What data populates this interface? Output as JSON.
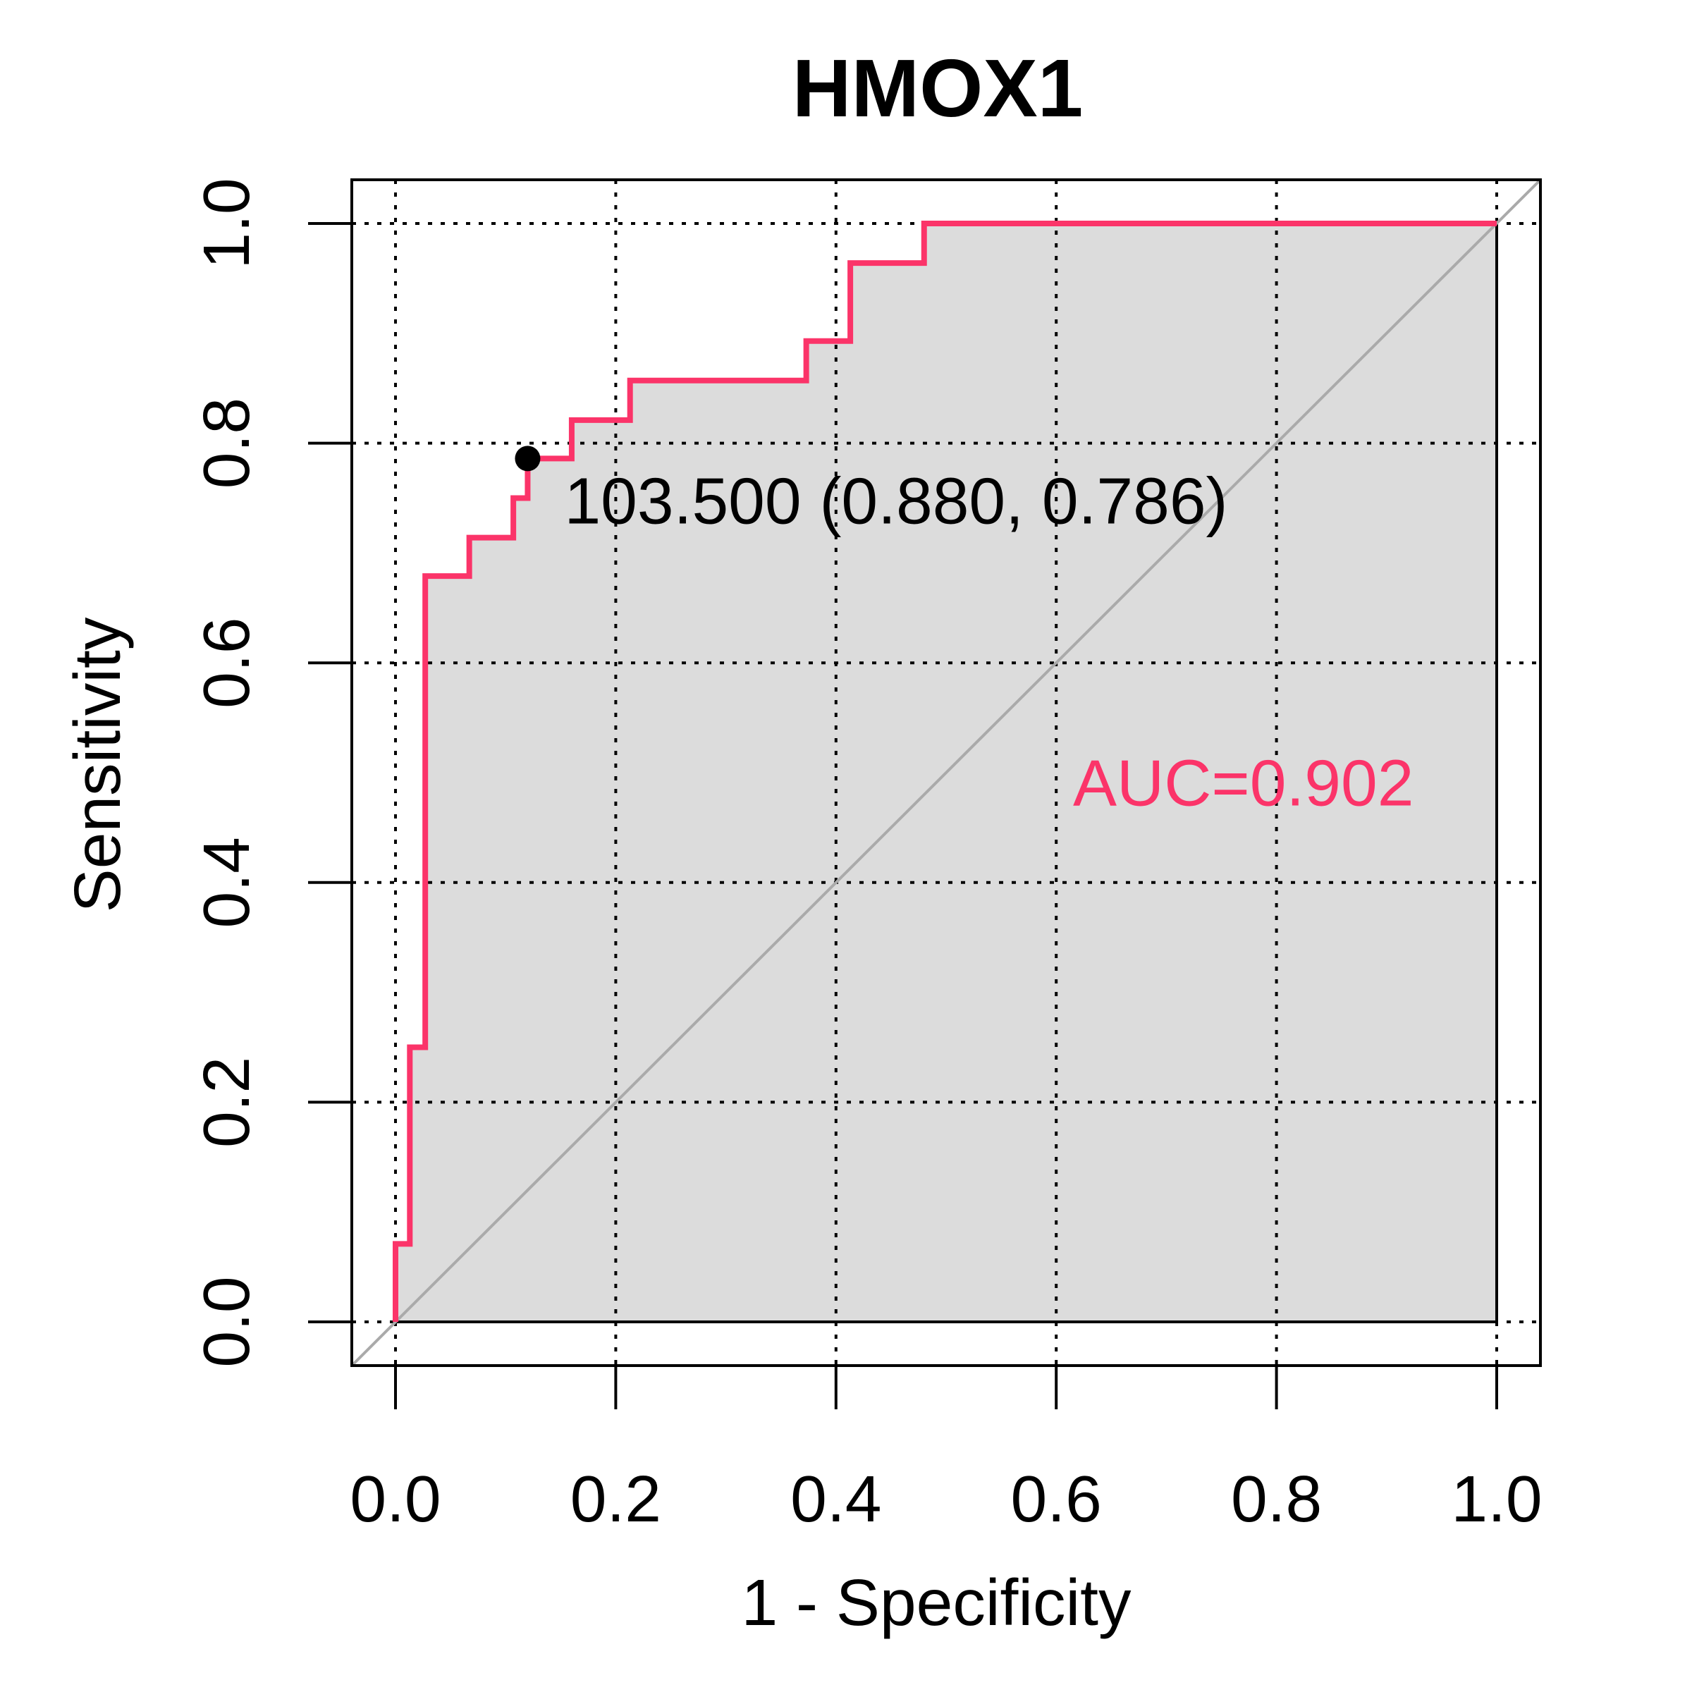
{
  "chart_data": {
    "type": "line",
    "title": "HMOX1",
    "xlabel": "1 - Specificity",
    "ylabel": "Sensitivity",
    "xlim": [
      0.0,
      1.0
    ],
    "ylim": [
      0.0,
      1.0
    ],
    "x_ticks": [
      "0.0",
      "0.2",
      "0.4",
      "0.6",
      "0.8",
      "1.0"
    ],
    "y_ticks": [
      "0.0",
      "0.2",
      "0.4",
      "0.6",
      "0.8",
      "1.0"
    ],
    "grid": true,
    "series": [
      {
        "color": "#fb3469",
        "x": [
          0.0,
          0.0,
          0.013,
          0.013,
          0.027,
          0.027,
          0.067,
          0.067,
          0.107,
          0.107,
          0.12,
          0.12,
          0.16,
          0.16,
          0.213,
          0.213,
          0.373,
          0.373,
          0.413,
          0.413,
          0.48,
          0.48,
          1.0
        ],
        "y": [
          0.0,
          0.071,
          0.071,
          0.25,
          0.25,
          0.679,
          0.679,
          0.714,
          0.714,
          0.75,
          0.75,
          0.786,
          0.786,
          0.821,
          0.821,
          0.857,
          0.857,
          0.893,
          0.893,
          0.964,
          0.964,
          1.0,
          1.0
        ]
      }
    ],
    "reference_line": {
      "x": [
        0,
        1
      ],
      "y": [
        0,
        1
      ],
      "color": "#aaaaaa"
    },
    "area_fill_color": "#dcdcdc",
    "threshold_point": {
      "x": 0.12,
      "y": 0.786,
      "label": "103.500 (0.880, 0.786)"
    },
    "auc_label": {
      "text": "AUC=0.902",
      "color": "#fb3469",
      "x": 0.77,
      "y": 0.47
    }
  }
}
